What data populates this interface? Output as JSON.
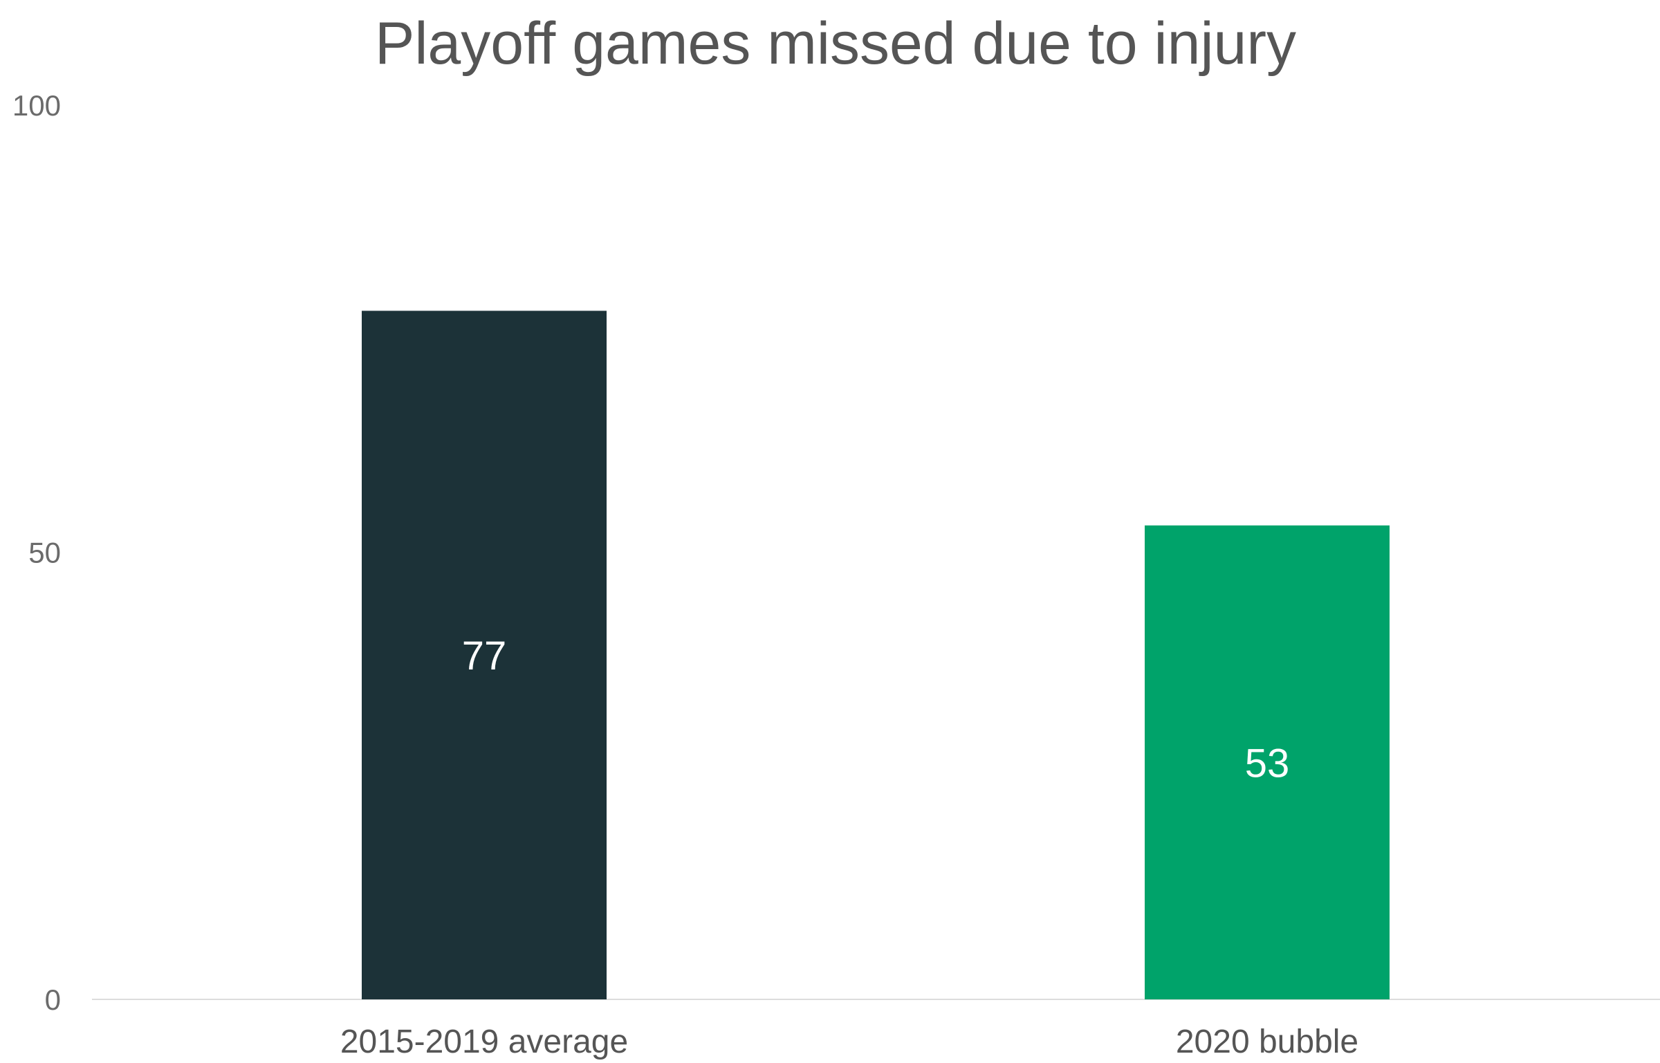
{
  "chart_data": {
    "type": "bar",
    "title": "Playoff games missed due to injury",
    "xlabel": "",
    "ylabel": "",
    "categories": [
      "2015-2019 average",
      "2020 bubble"
    ],
    "values": [
      77,
      53
    ],
    "data_labels": [
      "77",
      "53"
    ],
    "colors": [
      "#1c3238",
      "#00a36a"
    ],
    "ylim": [
      0,
      100
    ],
    "yticks": [
      0,
      50,
      100
    ],
    "ytick_labels": [
      "0",
      "50",
      "100"
    ],
    "grid": false,
    "legend": "none"
  }
}
